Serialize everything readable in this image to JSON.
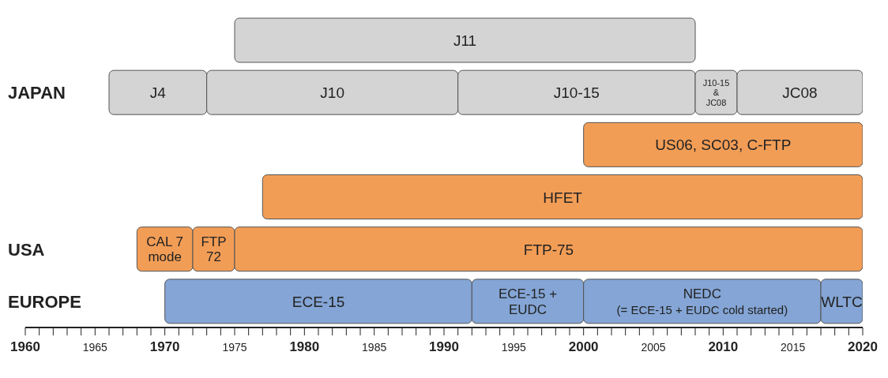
{
  "chart_data": {
    "type": "bar",
    "orientation": "horizontal",
    "categories": [
      null,
      "JAPAN",
      null,
      null,
      "USA",
      "EUROPE"
    ],
    "xlim": [
      1960,
      2020
    ],
    "xticks": [
      1960,
      {
        "value": 1961,
        "label": null
      },
      {
        "value": 1962,
        "label": null
      },
      {
        "value": 1963,
        "label": null
      },
      {
        "value": 1964,
        "label": null
      },
      1965,
      {
        "value": 1966,
        "label": null
      },
      {
        "value": 1967,
        "label": null
      },
      {
        "value": 1968,
        "label": null
      },
      {
        "value": 1969,
        "label": null
      },
      1970,
      {
        "value": 1971,
        "label": null
      },
      {
        "value": 1972,
        "label": null
      },
      {
        "value": 1973,
        "label": null
      },
      {
        "value": 1974,
        "label": null
      },
      1975,
      {
        "value": 1976,
        "label": null
      },
      {
        "value": 1977,
        "label": null
      },
      {
        "value": 1978,
        "label": null
      },
      {
        "value": 1979,
        "label": null
      },
      1980,
      {
        "value": 1981,
        "label": null
      },
      {
        "value": 1982,
        "label": null
      },
      {
        "value": 1983,
        "label": null
      },
      {
        "value": 1984,
        "label": null
      },
      1985,
      {
        "value": 1986,
        "label": null
      },
      {
        "value": 1987,
        "label": null
      },
      {
        "value": 1988,
        "label": null
      },
      {
        "value": 1989,
        "label": null
      },
      1990,
      {
        "value": 1991,
        "label": null
      },
      {
        "value": 1992,
        "label": null
      },
      {
        "value": 1993,
        "label": null
      },
      {
        "value": 1994,
        "label": null
      },
      1995,
      {
        "value": 1996,
        "label": null
      },
      {
        "value": 1997,
        "label": null
      },
      {
        "value": 1998,
        "label": null
      },
      {
        "value": 1999,
        "label": null
      },
      2000,
      {
        "value": 2001,
        "label": null
      },
      {
        "value": 2002,
        "label": null
      },
      {
        "value": 2003,
        "label": null
      },
      {
        "value": 2004,
        "label": null
      },
      2005,
      {
        "value": 2006,
        "label": null
      },
      {
        "value": 2007,
        "label": null
      },
      {
        "value": 2008,
        "label": null
      },
      {
        "value": 2009,
        "label": null
      },
      2010,
      {
        "value": 2011,
        "label": null
      },
      {
        "value": 2012,
        "label": null
      },
      {
        "value": 2013,
        "label": null
      },
      {
        "value": 2014,
        "label": null
      },
      2015,
      {
        "value": 2016,
        "label": null
      },
      {
        "value": 2017,
        "label": null
      },
      {
        "value": 2018,
        "label": null
      },
      {
        "value": 2019,
        "label": null
      },
      2020
    ],
    "grid": false,
    "legend": false,
    "series": [
      {
        "name": "J11",
        "color": "#d4d4d4",
        "values": [
          33,
          null,
          null,
          null,
          null,
          null
        ],
        "base": [
          1975,
          null,
          null,
          null,
          null,
          null
        ]
      },
      {
        "name": "J4",
        "color": "#d4d4d4",
        "values": [
          null,
          7,
          null,
          null,
          null,
          null
        ],
        "base": [
          null,
          1966,
          null,
          null,
          null,
          null
        ]
      },
      {
        "name": "J10",
        "color": "#d4d4d4",
        "values": [
          null,
          18,
          null,
          null,
          null,
          null
        ],
        "base": [
          null,
          1973,
          null,
          null,
          null,
          null
        ]
      },
      {
        "name": "J10-15",
        "color": "#d4d4d4",
        "values": [
          null,
          17,
          null,
          null,
          null,
          null
        ],
        "base": [
          null,
          1991,
          null,
          null,
          null,
          null
        ]
      },
      {
        "name": "J10-15\n&\nJC08",
        "color": "#d4d4d4",
        "values": [
          null,
          3,
          null,
          null,
          null,
          null
        ],
        "base": [
          null,
          2008,
          null,
          null,
          null,
          null
        ]
      },
      {
        "name": "JC08",
        "color": "#d4d4d4",
        "values": [
          null,
          9,
          null,
          null,
          null,
          null
        ],
        "base": [
          null,
          2011,
          null,
          null,
          null,
          null
        ]
      },
      {
        "name": "US06, SC03, C-FTP",
        "color": "#f29d56",
        "values": [
          null,
          null,
          20,
          null,
          null,
          null
        ],
        "base": [
          null,
          null,
          2000,
          null,
          null,
          null
        ]
      },
      {
        "name": "HFET",
        "color": "#f29d56",
        "values": [
          null,
          null,
          null,
          43,
          null,
          null
        ],
        "base": [
          null,
          null,
          null,
          1977,
          null,
          null
        ]
      },
      {
        "name": "CAL 7\nmode",
        "color": "#f29d56",
        "values": [
          null,
          null,
          null,
          null,
          4,
          null
        ],
        "base": [
          null,
          null,
          null,
          null,
          1968,
          null
        ]
      },
      {
        "name": "FTP\n72",
        "color": "#f29d56",
        "values": [
          null,
          null,
          null,
          null,
          3,
          null
        ],
        "base": [
          null,
          null,
          null,
          null,
          1972,
          null
        ]
      },
      {
        "name": "FTP-75",
        "color": "#f29d56",
        "values": [
          null,
          null,
          null,
          null,
          45,
          null
        ],
        "base": [
          null,
          null,
          null,
          null,
          1975,
          null
        ]
      },
      {
        "name": "ECE-15",
        "color": "#84a5d5",
        "values": [
          null,
          null,
          null,
          null,
          null,
          22
        ],
        "base": [
          null,
          null,
          null,
          null,
          null,
          1970
        ]
      },
      {
        "name": "ECE-15 +\nEUDC",
        "color": "#84a5d5",
        "values": [
          null,
          null,
          null,
          null,
          null,
          8
        ],
        "base": [
          null,
          null,
          null,
          null,
          null,
          1992
        ]
      },
      {
        "name": "NEDC\n(= ECE-15 + EUDC cold started)",
        "color": "#84a5d5",
        "values": [
          null,
          null,
          null,
          null,
          null,
          17
        ],
        "base": [
          null,
          null,
          null,
          null,
          null,
          2000
        ]
      },
      {
        "name": "WLTC",
        "color": "#84a5d5",
        "values": [
          null,
          null,
          null,
          null,
          null,
          3
        ],
        "base": [
          null,
          null,
          null,
          null,
          null,
          2017
        ]
      }
    ]
  }
}
